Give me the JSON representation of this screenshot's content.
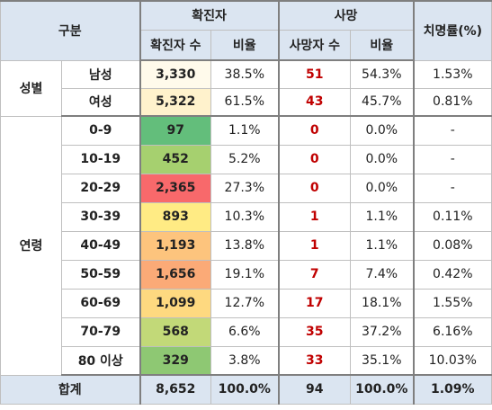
{
  "header": {
    "category": "구분",
    "confirmed": "확진자",
    "deaths": "사망",
    "fatality_rate": "치명률(%)",
    "confirmed_count": "확진자 수",
    "confirmed_ratio": "비율",
    "death_count": "사망자 수",
    "death_ratio": "비율"
  },
  "groups": {
    "sex": "성별",
    "age": "연령"
  },
  "sex_rows": [
    {
      "label": "남성",
      "confirmed": "3,330",
      "confirmed_ratio": "38.5%",
      "deaths": "51",
      "death_ratio": "54.3%",
      "fatality": "1.53%",
      "color": "#fffaeb"
    },
    {
      "label": "여성",
      "confirmed": "5,322",
      "confirmed_ratio": "61.5%",
      "deaths": "43",
      "death_ratio": "45.7%",
      "fatality": "0.81%",
      "color": "#fff2cc"
    }
  ],
  "age_rows": [
    {
      "label": "0-9",
      "confirmed": "97",
      "confirmed_ratio": "1.1%",
      "deaths": "0",
      "death_ratio": "0.0%",
      "fatality": "-",
      "color": "#63be7b"
    },
    {
      "label": "10-19",
      "confirmed": "452",
      "confirmed_ratio": "5.2%",
      "deaths": "0",
      "death_ratio": "0.0%",
      "fatality": "-",
      "color": "#a6d06f"
    },
    {
      "label": "20-29",
      "confirmed": "2,365",
      "confirmed_ratio": "27.3%",
      "deaths": "0",
      "death_ratio": "0.0%",
      "fatality": "-",
      "color": "#f8696b"
    },
    {
      "label": "30-39",
      "confirmed": "893",
      "confirmed_ratio": "10.3%",
      "deaths": "1",
      "death_ratio": "1.1%",
      "fatality": "0.11%",
      "color": "#ffeb84"
    },
    {
      "label": "40-49",
      "confirmed": "1,193",
      "confirmed_ratio": "13.8%",
      "deaths": "1",
      "death_ratio": "1.1%",
      "fatality": "0.08%",
      "color": "#fdc47d"
    },
    {
      "label": "50-59",
      "confirmed": "1,656",
      "confirmed_ratio": "19.1%",
      "deaths": "7",
      "death_ratio": "7.4%",
      "fatality": "0.42%",
      "color": "#fbaa77"
    },
    {
      "label": "60-69",
      "confirmed": "1,099",
      "confirmed_ratio": "12.7%",
      "deaths": "17",
      "death_ratio": "18.1%",
      "fatality": "1.55%",
      "color": "#fed980"
    },
    {
      "label": "70-79",
      "confirmed": "568",
      "confirmed_ratio": "6.6%",
      "deaths": "35",
      "death_ratio": "37.2%",
      "fatality": "6.16%",
      "color": "#c2d978"
    },
    {
      "label": "80 이상",
      "confirmed": "329",
      "confirmed_ratio": "3.8%",
      "deaths": "33",
      "death_ratio": "35.1%",
      "fatality": "10.03%",
      "color": "#8ec873"
    }
  ],
  "total": {
    "label": "합계",
    "confirmed": "8,652",
    "confirmed_ratio": "100.0%",
    "deaths": "94",
    "death_ratio": "100.0%",
    "fatality": "1.09%"
  }
}
